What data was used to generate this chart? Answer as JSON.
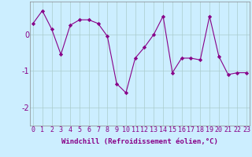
{
  "x": [
    0,
    1,
    2,
    3,
    4,
    5,
    6,
    7,
    8,
    9,
    10,
    11,
    12,
    13,
    14,
    15,
    16,
    17,
    18,
    19,
    20,
    21,
    22,
    23
  ],
  "y": [
    0.3,
    0.65,
    0.15,
    -0.55,
    0.25,
    0.4,
    0.4,
    0.3,
    -0.05,
    -1.35,
    -1.6,
    -0.65,
    -0.35,
    0.0,
    0.5,
    -1.05,
    -0.65,
    -0.65,
    -0.7,
    0.5,
    -0.6,
    -1.1,
    -1.05,
    -1.05
  ],
  "line_color": "#880088",
  "marker_color": "#880088",
  "bg_color": "#cceeff",
  "plot_bg_color": "#cceeff",
  "grid_color": "#aacccc",
  "xlabel": "Windchill (Refroidissement éolien,°C)",
  "ylim": [
    -2.5,
    0.9
  ],
  "yticks": [
    0,
    -1,
    -2
  ],
  "ytick_labels": [
    "0",
    "-1",
    "-2"
  ],
  "xticks": [
    0,
    1,
    2,
    3,
    4,
    5,
    6,
    7,
    8,
    9,
    10,
    11,
    12,
    13,
    14,
    15,
    16,
    17,
    18,
    19,
    20,
    21,
    22,
    23
  ],
  "xlim": [
    -0.3,
    23.3
  ],
  "xlabel_fontsize": 6.5,
  "tick_fontsize": 6,
  "label_color": "#880088",
  "spine_color": "#888888"
}
